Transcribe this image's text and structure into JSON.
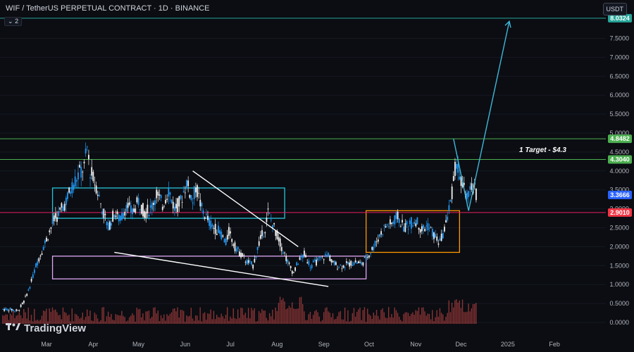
{
  "header": {
    "title": "WIF / TetherUS PERPETUAL CONTRACT · 1D · BINANCE",
    "indicator_badge": "2",
    "currency_button": "USDT"
  },
  "watermark": {
    "brand": "TradingView"
  },
  "colors": {
    "background": "#0b0d12",
    "candle_up": "#2196f3",
    "candle_down": "#f0f0f0",
    "volume": "#ef5350",
    "target_line": "#26a69a",
    "zone_teal": "#26c6da",
    "zone_violet": "#e1a6f5",
    "zone_orange": "#ff9800",
    "arrow": "#3fb7d9",
    "wedge_lines": "#ffffff"
  },
  "annotations": {
    "target_text": "1 Target - $4.3"
  },
  "chart_data": {
    "type": "candlestick",
    "symbol": "WIF/USDT",
    "timeframe": "1D",
    "ylim": [
      -0.3,
      8.2
    ],
    "y_ticks": [
      "7.5000",
      "7.0000",
      "6.5000",
      "6.0000",
      "5.5000",
      "5.0000",
      "4.5000",
      "4.0000",
      "3.5000",
      "3.0000",
      "2.5000",
      "2.0000",
      "1.5000",
      "1.0000",
      "0.5000",
      "0.0000"
    ],
    "x_ticks": [
      "Mar",
      "Apr",
      "May",
      "Jun",
      "Jul",
      "Aug",
      "Sep",
      "Oct",
      "Nov",
      "Dec",
      "2025",
      "Feb"
    ],
    "price_badges": [
      {
        "label": "8.0324",
        "value": 8.0324,
        "color": "#26a69a"
      },
      {
        "label": "4.8482",
        "value": 4.8482,
        "color": "#4caf50"
      },
      {
        "label": "4.3040",
        "value": 4.304,
        "color": "#4caf50"
      },
      {
        "label": "3.3666",
        "value": 3.3666,
        "color": "#2962ff"
      },
      {
        "label": "2.9010",
        "value": 2.901,
        "color": "#f23645"
      }
    ],
    "horizontal_levels": [
      {
        "value": 8.0324,
        "color": "#26a69a"
      },
      {
        "value": 4.8482,
        "color": "#4caf50"
      },
      {
        "value": 4.304,
        "color": "#4caf50"
      },
      {
        "value": 2.901,
        "color": "#e91e63"
      }
    ],
    "zones": [
      {
        "name": "teal-box",
        "x_start": "Mar 5",
        "x_end": "Aug 5",
        "y_low": 2.75,
        "y_high": 3.55,
        "color": "#26c6da"
      },
      {
        "name": "violet-box",
        "x_start": "Mar 5",
        "x_end": "Sep 28",
        "y_low": 1.15,
        "y_high": 1.75,
        "color": "#e1a6f5"
      },
      {
        "name": "orange-box",
        "x_start": "Sep 28",
        "x_end": "Nov 30",
        "y_low": 1.85,
        "y_high": 2.95,
        "color": "#ff9800"
      }
    ],
    "target": 4.3,
    "projection_target": 8.0324,
    "candles": []
  }
}
